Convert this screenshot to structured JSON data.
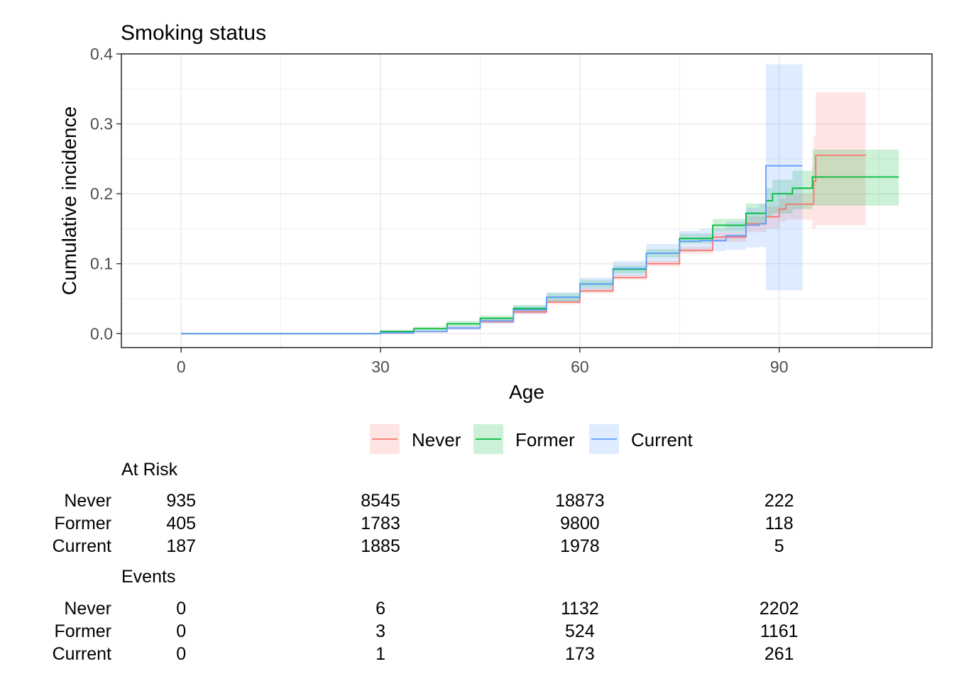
{
  "chart_data": {
    "type": "line",
    "title": "Smoking status",
    "xlabel": "Age",
    "ylabel": "Cumulative incidence",
    "xlim": [
      -9,
      113
    ],
    "ylim": [
      -0.02,
      0.4
    ],
    "x_ticks": [
      0,
      30,
      60,
      90
    ],
    "x_tick_labels": [
      "0",
      "30",
      "60",
      "90"
    ],
    "y_ticks": [
      0.0,
      0.1,
      0.2,
      0.3,
      0.4
    ],
    "y_tick_labels": [
      "0.0",
      "0.1",
      "0.2",
      "0.3",
      "0.4"
    ],
    "grid": true,
    "legend_position": "bottom",
    "series": [
      {
        "name": "Never",
        "color": "#F8766D",
        "x": [
          0,
          25,
          30,
          35,
          40,
          45,
          50,
          55,
          60,
          65,
          70,
          75,
          80,
          85,
          88,
          90,
          91,
          95,
          95.2,
          95.5,
          103
        ],
        "y": [
          0,
          0,
          0.001,
          0.003,
          0.008,
          0.017,
          0.031,
          0.045,
          0.061,
          0.08,
          0.1,
          0.119,
          0.138,
          0.157,
          0.167,
          0.178,
          0.185,
          0.185,
          0.218,
          0.255,
          0.255
        ],
        "lower": [
          0,
          0,
          0.0,
          0.002,
          0.006,
          0.015,
          0.028,
          0.042,
          0.058,
          0.077,
          0.096,
          0.114,
          0.131,
          0.145,
          0.15,
          0.16,
          0.163,
          0.15,
          0.15,
          0.155,
          0.155
        ],
        "upper": [
          0,
          0,
          0.002,
          0.004,
          0.01,
          0.02,
          0.034,
          0.049,
          0.065,
          0.084,
          0.104,
          0.124,
          0.145,
          0.168,
          0.182,
          0.193,
          0.2,
          0.24,
          0.282,
          0.345,
          0.345
        ]
      },
      {
        "name": "Former",
        "color": "#00BA38",
        "x": [
          0,
          25,
          30,
          35,
          40,
          45,
          50,
          55,
          60,
          65,
          70,
          75,
          80,
          85,
          88,
          89,
          92,
          95,
          108
        ],
        "y": [
          0,
          0,
          0.003,
          0.007,
          0.014,
          0.022,
          0.036,
          0.052,
          0.071,
          0.092,
          0.115,
          0.136,
          0.155,
          0.172,
          0.19,
          0.2,
          0.208,
          0.224,
          0.224
        ],
        "lower": [
          0,
          0,
          0.001,
          0.004,
          0.01,
          0.018,
          0.031,
          0.046,
          0.065,
          0.086,
          0.109,
          0.129,
          0.146,
          0.158,
          0.168,
          0.172,
          0.178,
          0.183,
          0.183
        ],
        "upper": [
          0,
          0,
          0.005,
          0.01,
          0.018,
          0.026,
          0.041,
          0.058,
          0.077,
          0.098,
          0.121,
          0.143,
          0.164,
          0.186,
          0.208,
          0.22,
          0.233,
          0.263,
          0.263
        ]
      },
      {
        "name": "Current",
        "color": "#619CFF",
        "x": [
          0,
          25,
          30,
          35,
          40,
          45,
          50,
          55,
          60,
          65,
          70,
          75,
          78,
          82,
          85,
          87,
          88,
          93.5
        ],
        "y": [
          0,
          0,
          0.001,
          0.003,
          0.008,
          0.018,
          0.034,
          0.052,
          0.071,
          0.093,
          0.115,
          0.132,
          0.133,
          0.14,
          0.155,
          0.157,
          0.24,
          0.24
        ],
        "lower": [
          0,
          0,
          0.0,
          0.002,
          0.005,
          0.014,
          0.028,
          0.045,
          0.062,
          0.082,
          0.102,
          0.117,
          0.118,
          0.12,
          0.123,
          0.124,
          0.062,
          0.062
        ],
        "upper": [
          0,
          0,
          0.002,
          0.004,
          0.011,
          0.023,
          0.04,
          0.059,
          0.08,
          0.104,
          0.128,
          0.147,
          0.15,
          0.16,
          0.18,
          0.185,
          0.385,
          0.385
        ]
      }
    ]
  },
  "risk_table": {
    "columns_x": [
      0,
      30,
      60,
      90
    ],
    "at_risk_title": "At Risk",
    "at_risk": [
      {
        "label": "Never",
        "values": [
          "935",
          "8545",
          "18873",
          "222"
        ]
      },
      {
        "label": "Former",
        "values": [
          "405",
          "1783",
          "9800",
          "118"
        ]
      },
      {
        "label": "Current",
        "values": [
          "187",
          "1885",
          "1978",
          "5"
        ]
      }
    ],
    "events_title": "Events",
    "events": [
      {
        "label": "Never",
        "values": [
          "0",
          "6",
          "1132",
          "2202"
        ]
      },
      {
        "label": "Former",
        "values": [
          "0",
          "3",
          "524",
          "1161"
        ]
      },
      {
        "label": "Current",
        "values": [
          "0",
          "1",
          "173",
          "261"
        ]
      }
    ]
  },
  "colors": {
    "grid": "#EBEBEB",
    "axis_text": "#4D4D4D",
    "panel_border": "#333333"
  }
}
